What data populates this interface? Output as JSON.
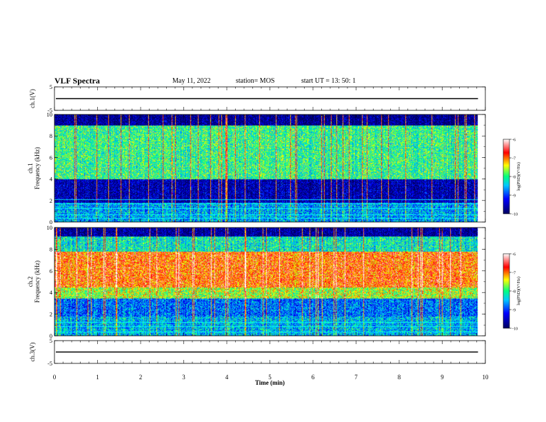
{
  "header": {
    "title": "VLF Spectra",
    "date": "May 11, 2022",
    "station": "station= MOS",
    "start": "start  UT =   13: 50: 1"
  },
  "chart_data": [
    {
      "type": "line",
      "name": "ch1-waveform",
      "ylabel": "ch.1(V)",
      "ylim": [
        -5,
        5
      ],
      "y_ticks": [
        "5",
        "-5"
      ],
      "x": [
        0,
        9.83
      ],
      "values": [
        0,
        0
      ]
    },
    {
      "type": "heatmap",
      "name": "ch1-spectrogram",
      "ylabel": "ch.1\nFrequency (kHz)",
      "ylim": [
        0,
        10
      ],
      "y_ticks": [
        "0",
        "2",
        "4",
        "6",
        "8",
        "10"
      ],
      "xlim": [
        0,
        10
      ],
      "data_end_min": 9.83,
      "colorbar": {
        "label": "log(PSD)(V²/Hz)",
        "range": [
          -10,
          -6
        ],
        "ticks": [
          "-6",
          "-7",
          "-8",
          "-9",
          "-10"
        ]
      },
      "bands_khz": [
        {
          "from": 0,
          "to": 1.8,
          "level": -8.6
        },
        {
          "from": 1.8,
          "to": 4.0,
          "level": -9.6
        },
        {
          "from": 4.0,
          "to": 9.0,
          "level": -8.0
        },
        {
          "from": 9.0,
          "to": 10.0,
          "level": -9.8
        }
      ],
      "lines_khz": [
        0.4,
        0.7,
        1.3,
        1.7,
        2.1
      ]
    },
    {
      "type": "heatmap",
      "name": "ch2-spectrogram",
      "ylabel": "ch.2\nFrequency (kHz)",
      "ylim": [
        0,
        10
      ],
      "y_ticks": [
        "0",
        "2",
        "4",
        "6",
        "8",
        "10"
      ],
      "xlim": [
        0,
        10
      ],
      "data_end_min": 9.83,
      "colorbar": {
        "label": "log(PSD)(V²/Hz)",
        "range": [
          -10,
          -6
        ],
        "ticks": [
          "-6",
          "-7",
          "-8",
          "-9",
          "-10"
        ]
      },
      "bands_khz": [
        {
          "from": 0,
          "to": 1.8,
          "level": -8.5
        },
        {
          "from": 1.8,
          "to": 3.5,
          "level": -8.8
        },
        {
          "from": 3.5,
          "to": 4.5,
          "level": -7.6
        },
        {
          "from": 4.5,
          "to": 7.8,
          "level": -6.9
        },
        {
          "from": 7.8,
          "to": 9.2,
          "level": -8.2
        },
        {
          "from": 9.2,
          "to": 10.0,
          "level": -9.7
        }
      ],
      "lines_khz": [
        0.4,
        0.9,
        1.3
      ]
    },
    {
      "type": "line",
      "name": "ch3-waveform",
      "ylabel": "ch.3(V)",
      "ylim": [
        -5,
        5
      ],
      "y_ticks": [
        "5",
        "-5"
      ],
      "x": [
        0,
        9.83
      ],
      "values": [
        0,
        0
      ]
    }
  ],
  "x_axis": {
    "label": "Time  (min)",
    "xlim": [
      0,
      10
    ],
    "ticks": [
      "0",
      "1",
      "2",
      "3",
      "4",
      "5",
      "6",
      "7",
      "8",
      "9",
      "10"
    ]
  },
  "colors": {
    "scale": [
      "#000060",
      "#0000ff",
      "#00c8ff",
      "#00ff80",
      "#ffff00",
      "#ff0000",
      "#ffffff"
    ]
  }
}
